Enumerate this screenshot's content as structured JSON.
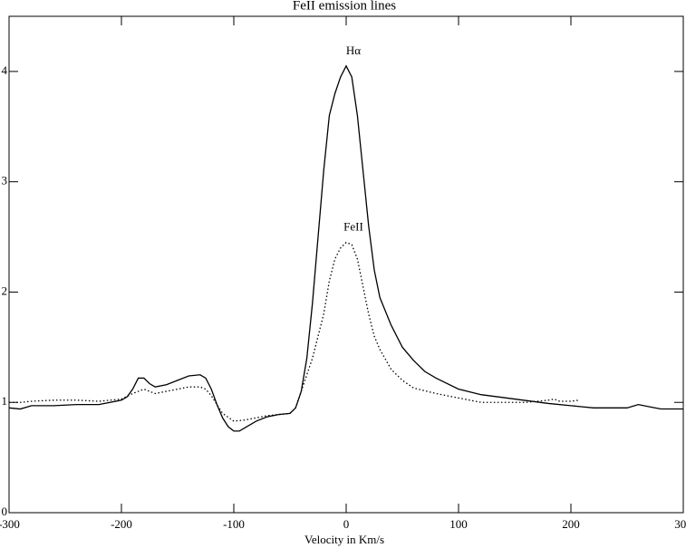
{
  "chart_data": {
    "type": "line",
    "title": "FeII emission lines",
    "x_label": "Velocity in Km/s",
    "xlim": [
      -300,
      300
    ],
    "ylim": [
      0,
      4.5
    ],
    "xticks": [
      -300,
      -200,
      -100,
      0,
      100,
      200,
      300
    ],
    "yticks": [
      0,
      1,
      2,
      3,
      4
    ],
    "series": [
      {
        "label": "Hα",
        "color": "#000000",
        "dash": "solid",
        "x": [
          -300,
          -290,
          -280,
          -260,
          -240,
          -220,
          -200,
          -195,
          -190,
          -185,
          -180,
          -175,
          -170,
          -160,
          -150,
          -140,
          -130,
          -125,
          -120,
          -115,
          -110,
          -105,
          -100,
          -95,
          -90,
          -80,
          -70,
          -60,
          -50,
          -45,
          -40,
          -35,
          -30,
          -25,
          -20,
          -15,
          -10,
          -5,
          0,
          5,
          10,
          15,
          20,
          25,
          30,
          40,
          50,
          60,
          70,
          80,
          100,
          120,
          150,
          180,
          200,
          220,
          240,
          250,
          260,
          270,
          280,
          300
        ],
        "values": [
          0.95,
          0.94,
          0.97,
          0.97,
          0.98,
          0.98,
          1.02,
          1.05,
          1.12,
          1.22,
          1.22,
          1.17,
          1.14,
          1.16,
          1.2,
          1.24,
          1.25,
          1.22,
          1.12,
          0.98,
          0.86,
          0.78,
          0.74,
          0.74,
          0.77,
          0.83,
          0.87,
          0.89,
          0.9,
          0.95,
          1.1,
          1.4,
          1.9,
          2.5,
          3.1,
          3.6,
          3.8,
          3.95,
          4.05,
          3.95,
          3.6,
          3.1,
          2.6,
          2.2,
          1.95,
          1.7,
          1.5,
          1.38,
          1.28,
          1.22,
          1.12,
          1.07,
          1.03,
          0.99,
          0.97,
          0.95,
          0.95,
          0.95,
          0.98,
          0.96,
          0.94,
          0.94
        ]
      },
      {
        "label": "FeII",
        "color": "#000000",
        "dash": "dotted",
        "x": [
          -300,
          -290,
          -280,
          -260,
          -240,
          -220,
          -200,
          -190,
          -180,
          -175,
          -170,
          -160,
          -150,
          -140,
          -130,
          -125,
          -120,
          -110,
          -100,
          -90,
          -80,
          -70,
          -60,
          -50,
          -45,
          -40,
          -30,
          -20,
          -15,
          -10,
          -5,
          0,
          5,
          10,
          15,
          20,
          25,
          30,
          40,
          50,
          60,
          80,
          100,
          120,
          140,
          160,
          180,
          185,
          190,
          200,
          207
        ],
        "values": [
          1.0,
          1.0,
          1.01,
          1.02,
          1.02,
          1.01,
          1.03,
          1.08,
          1.12,
          1.1,
          1.08,
          1.1,
          1.12,
          1.14,
          1.14,
          1.12,
          1.06,
          0.9,
          0.83,
          0.84,
          0.86,
          0.88,
          0.89,
          0.9,
          0.95,
          1.1,
          1.4,
          1.8,
          2.1,
          2.3,
          2.4,
          2.45,
          2.43,
          2.3,
          2.05,
          1.8,
          1.6,
          1.48,
          1.3,
          1.2,
          1.13,
          1.08,
          1.04,
          1.0,
          1.0,
          1.0,
          1.02,
          1.03,
          1.01,
          1.01,
          1.02
        ]
      }
    ]
  }
}
